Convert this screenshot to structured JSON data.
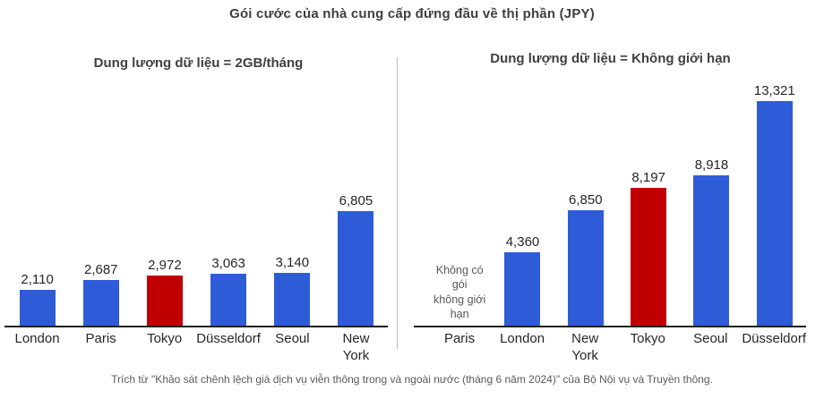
{
  "title": "Gói cước của nhà cung cấp đứng đầu về thị phần (JPY)",
  "footer": "Trích từ \"Khảo sát chênh lệch giá dịch vụ viễn thông trong và ngoài nước (tháng 6 năm 2024)\" của Bộ Nội vụ và Truyền thông.",
  "colors": {
    "bar_blue": "#2e5cd8",
    "bar_red": "#c00000",
    "text_dark": "#262626",
    "text_gray": "#595959",
    "axis": "#1f1f1f",
    "divider": "#bdbdbd"
  },
  "chart_data": [
    {
      "type": "bar",
      "title": "Dung lượng dữ liệu = 2GB/tháng",
      "categories": [
        "London",
        "Paris",
        "Tokyo",
        "Düsseldorf",
        "Seoul",
        "New York"
      ],
      "tick_labels": [
        "London",
        "Paris",
        "Tokyo",
        "Düsseldorf",
        "Seoul",
        "New\nYork"
      ],
      "values": [
        2110,
        2687,
        2972,
        3063,
        3140,
        6805
      ],
      "value_labels": [
        "2,110",
        "2,687",
        "2,972",
        "3,063",
        "3,140",
        "6,805"
      ],
      "highlight_category": "Tokyo",
      "unit": "JPY",
      "xlabel": "",
      "ylabel": "",
      "ylim": [
        0,
        13321
      ],
      "grid": false,
      "legend": "none"
    },
    {
      "type": "bar",
      "title": "Dung lượng dữ liệu = Không giới hạn",
      "categories": [
        "Paris",
        "London",
        "New York",
        "Tokyo",
        "Seoul",
        "Düsseldorf"
      ],
      "tick_labels": [
        "Paris",
        "London",
        "New\nYork",
        "Tokyo",
        "Seoul",
        "Düsseldorf"
      ],
      "values": [
        null,
        4360,
        6850,
        8197,
        8918,
        13321
      ],
      "value_labels": [
        "",
        "4,360",
        "6,850",
        "8,197",
        "8,918",
        "13,321"
      ],
      "no_data_note": "Không có gói\nkhông giới hạn",
      "no_data_category": "Paris",
      "highlight_category": "Tokyo",
      "unit": "JPY",
      "xlabel": "",
      "ylabel": "",
      "ylim": [
        0,
        13321
      ],
      "grid": false,
      "legend": "none"
    }
  ]
}
